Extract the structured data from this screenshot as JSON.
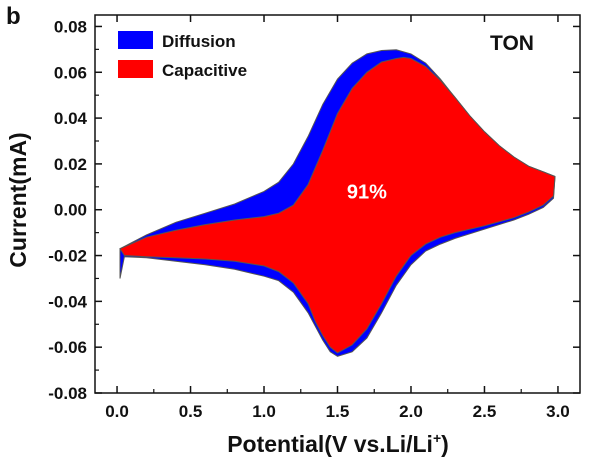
{
  "chart_data": {
    "type": "area",
    "panel_label": "b",
    "sample_label": "TON",
    "xlabel_main": "Potential(V vs.Li/Li",
    "xlabel_sup": "+",
    "xlabel_end": ")",
    "ylabel": "Current(mA)",
    "xlim": [
      -0.15,
      3.15
    ],
    "ylim": [
      -0.08,
      0.085
    ],
    "x_ticks": [
      0.0,
      0.5,
      1.0,
      1.5,
      2.0,
      2.5,
      3.0
    ],
    "x_tick_labels": [
      "0.0",
      "0.5",
      "1.0",
      "1.5",
      "2.0",
      "2.5",
      "3.0"
    ],
    "y_ticks": [
      -0.08,
      -0.06,
      -0.04,
      -0.02,
      0.0,
      0.02,
      0.04,
      0.06,
      0.08
    ],
    "y_tick_labels": [
      "-0.08",
      "-0.06",
      "-0.04",
      "-0.02",
      "0.00",
      "0.02",
      "0.04",
      "0.06",
      "0.08"
    ],
    "legend_position": "top-left",
    "annotation": {
      "text": "91%",
      "x": 1.7,
      "y": 0.005
    },
    "series": [
      {
        "name": "Diffusion",
        "color": "#0000ff",
        "points": [
          [
            0.02,
            -0.017
          ],
          [
            0.2,
            -0.011
          ],
          [
            0.4,
            -0.0055
          ],
          [
            0.6,
            -0.0015
          ],
          [
            0.8,
            0.0025
          ],
          [
            1.0,
            0.008
          ],
          [
            1.1,
            0.012
          ],
          [
            1.2,
            0.02
          ],
          [
            1.3,
            0.032
          ],
          [
            1.4,
            0.046
          ],
          [
            1.5,
            0.057
          ],
          [
            1.6,
            0.064
          ],
          [
            1.7,
            0.068
          ],
          [
            1.8,
            0.0695
          ],
          [
            1.9,
            0.0698
          ],
          [
            2.0,
            0.068
          ],
          [
            2.1,
            0.064
          ],
          [
            2.2,
            0.057
          ],
          [
            2.3,
            0.049
          ],
          [
            2.4,
            0.041
          ],
          [
            2.5,
            0.034
          ],
          [
            2.6,
            0.028
          ],
          [
            2.7,
            0.023
          ],
          [
            2.8,
            0.019
          ],
          [
            2.9,
            0.0165
          ],
          [
            2.98,
            0.0145
          ],
          [
            2.97,
            0.005
          ],
          [
            2.9,
            0.001
          ],
          [
            2.8,
            -0.002
          ],
          [
            2.7,
            -0.0045
          ],
          [
            2.5,
            -0.0085
          ],
          [
            2.3,
            -0.0125
          ],
          [
            2.2,
            -0.015
          ],
          [
            2.1,
            -0.018
          ],
          [
            2.0,
            -0.024
          ],
          [
            1.9,
            -0.033
          ],
          [
            1.8,
            -0.045
          ],
          [
            1.7,
            -0.056
          ],
          [
            1.6,
            -0.062
          ],
          [
            1.5,
            -0.064
          ],
          [
            1.45,
            -0.062
          ],
          [
            1.4,
            -0.057
          ],
          [
            1.35,
            -0.051
          ],
          [
            1.3,
            -0.045
          ],
          [
            1.2,
            -0.036
          ],
          [
            1.1,
            -0.031
          ],
          [
            1.0,
            -0.029
          ],
          [
            0.8,
            -0.026
          ],
          [
            0.6,
            -0.024
          ],
          [
            0.4,
            -0.0225
          ],
          [
            0.2,
            -0.021
          ],
          [
            0.05,
            -0.0205
          ],
          [
            0.02,
            -0.03
          ],
          [
            0.02,
            -0.017
          ]
        ]
      },
      {
        "name": "Capacitive",
        "color": "#ff0000",
        "points": [
          [
            0.02,
            -0.017
          ],
          [
            0.2,
            -0.012
          ],
          [
            0.4,
            -0.009
          ],
          [
            0.6,
            -0.0065
          ],
          [
            0.8,
            -0.0045
          ],
          [
            1.0,
            -0.003
          ],
          [
            1.1,
            -0.0015
          ],
          [
            1.2,
            0.002
          ],
          [
            1.3,
            0.011
          ],
          [
            1.4,
            0.026
          ],
          [
            1.5,
            0.042
          ],
          [
            1.6,
            0.053
          ],
          [
            1.7,
            0.06
          ],
          [
            1.8,
            0.0645
          ],
          [
            1.9,
            0.066
          ],
          [
            1.95,
            0.0665
          ],
          [
            2.0,
            0.066
          ],
          [
            2.1,
            0.0625
          ],
          [
            2.2,
            0.0565
          ],
          [
            2.3,
            0.049
          ],
          [
            2.4,
            0.041
          ],
          [
            2.5,
            0.034
          ],
          [
            2.6,
            0.028
          ],
          [
            2.7,
            0.023
          ],
          [
            2.8,
            0.019
          ],
          [
            2.9,
            0.0165
          ],
          [
            2.98,
            0.0145
          ],
          [
            2.97,
            0.006
          ],
          [
            2.9,
            0.002
          ],
          [
            2.8,
            -0.001
          ],
          [
            2.7,
            -0.0035
          ],
          [
            2.5,
            -0.007
          ],
          [
            2.3,
            -0.01
          ],
          [
            2.2,
            -0.012
          ],
          [
            2.1,
            -0.015
          ],
          [
            2.0,
            -0.02
          ],
          [
            1.9,
            -0.029
          ],
          [
            1.8,
            -0.041
          ],
          [
            1.7,
            -0.052
          ],
          [
            1.6,
            -0.059
          ],
          [
            1.5,
            -0.0625
          ],
          [
            1.45,
            -0.06
          ],
          [
            1.4,
            -0.055
          ],
          [
            1.35,
            -0.049
          ],
          [
            1.3,
            -0.041
          ],
          [
            1.2,
            -0.032
          ],
          [
            1.1,
            -0.027
          ],
          [
            1.0,
            -0.0245
          ],
          [
            0.8,
            -0.0225
          ],
          [
            0.6,
            -0.0215
          ],
          [
            0.4,
            -0.021
          ],
          [
            0.2,
            -0.0205
          ],
          [
            0.05,
            -0.02
          ],
          [
            0.02,
            -0.017
          ]
        ]
      }
    ]
  }
}
